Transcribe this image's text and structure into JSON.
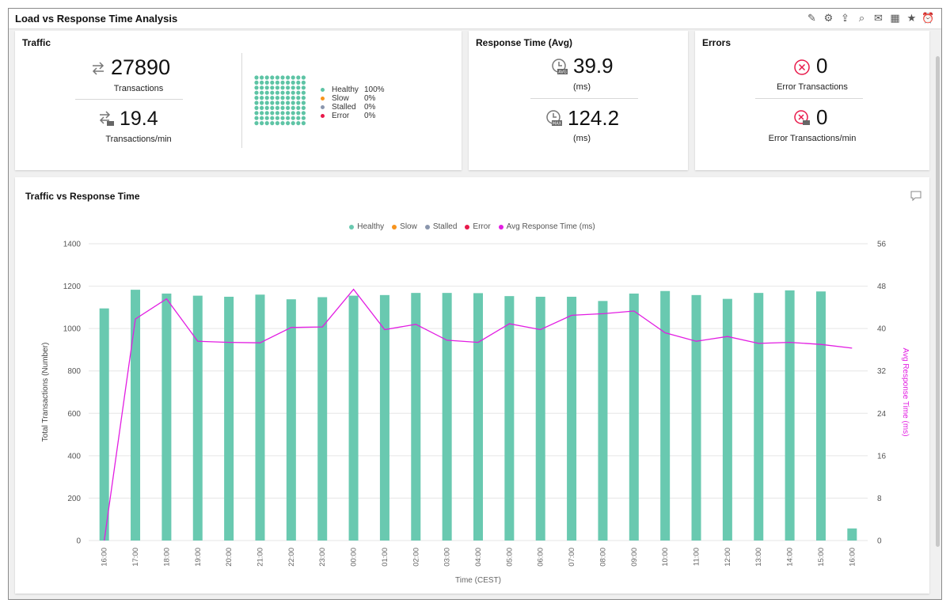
{
  "window": {
    "title": "Load vs Response Time Analysis"
  },
  "toolbar": {
    "buttons": [
      {
        "name": "edit-report-icon",
        "glyph": "✎"
      },
      {
        "name": "settings-icon",
        "glyph": "⚙"
      },
      {
        "name": "export-icon",
        "glyph": "⇪"
      },
      {
        "name": "search-icon",
        "glyph": "⌕"
      },
      {
        "name": "mail-icon",
        "glyph": "✉"
      },
      {
        "name": "excel-icon",
        "glyph": "▦"
      },
      {
        "name": "favorite-icon",
        "glyph": "★"
      },
      {
        "name": "alarm-icon",
        "glyph": "⏰"
      }
    ]
  },
  "traffic": {
    "title": "Traffic",
    "transactions_value": "27890",
    "transactions_label": "Transactions",
    "rate_value": "19.4",
    "rate_label": "Transactions/min",
    "breakdown": [
      {
        "name": "Healthy",
        "pct": "100%",
        "color": "#5ec4a5"
      },
      {
        "name": "Slow",
        "pct": "0%",
        "color": "#f7941d"
      },
      {
        "name": "Stalled",
        "pct": "0%",
        "color": "#8a96ad"
      },
      {
        "name": "Error",
        "pct": "0%",
        "color": "#e8194a"
      }
    ],
    "waffle_color": "#5ec4a5"
  },
  "response": {
    "title": "Response Time (Avg)",
    "avg_value": "39.9",
    "avg_unit": "(ms)",
    "max_value": "124.2",
    "max_unit": "(ms)",
    "avg_icon_text": "AVG",
    "max_icon_text": "MAX"
  },
  "errors": {
    "title": "Errors",
    "count_value": "0",
    "count_label": "Error Transactions",
    "rate_value": "0",
    "rate_label": "Error Transactions/min"
  },
  "chart_panel": {
    "title": "Traffic vs Response Time"
  },
  "chart_data": {
    "type": "bar",
    "title": "Traffic vs Response Time",
    "categories": [
      "16:00",
      "17:00",
      "18:00",
      "19:00",
      "20:00",
      "21:00",
      "22:00",
      "23:00",
      "00:00",
      "01:00",
      "02:00",
      "03:00",
      "04:00",
      "05:00",
      "06:00",
      "07:00",
      "08:00",
      "09:00",
      "10:00",
      "11:00",
      "12:00",
      "13:00",
      "14:00",
      "15:00",
      "16:00"
    ],
    "series": [
      {
        "name": "Healthy",
        "type": "bar",
        "axis": "left",
        "color": "#69c9b0",
        "values": [
          1095,
          1183,
          1165,
          1155,
          1150,
          1160,
          1138,
          1148,
          1155,
          1158,
          1168,
          1168,
          1167,
          1153,
          1150,
          1150,
          1130,
          1165,
          1177,
          1158,
          1140,
          1168,
          1180,
          1175,
          57
        ]
      },
      {
        "name": "Slow",
        "type": "bar",
        "axis": "left",
        "color": "#f7941d",
        "values": [
          0,
          0,
          0,
          0,
          0,
          0,
          0,
          0,
          0,
          0,
          0,
          0,
          0,
          0,
          0,
          0,
          0,
          0,
          0,
          0,
          0,
          0,
          0,
          0,
          0
        ]
      },
      {
        "name": "Stalled",
        "type": "bar",
        "axis": "left",
        "color": "#8a96ad",
        "values": [
          0,
          0,
          0,
          0,
          0,
          0,
          0,
          0,
          0,
          0,
          0,
          0,
          0,
          0,
          0,
          0,
          0,
          0,
          0,
          0,
          0,
          0,
          0,
          0,
          0
        ]
      },
      {
        "name": "Error",
        "type": "bar",
        "axis": "left",
        "color": "#e8194a",
        "values": [
          0,
          0,
          0,
          0,
          0,
          0,
          0,
          0,
          0,
          0,
          0,
          0,
          0,
          0,
          0,
          0,
          0,
          0,
          0,
          0,
          0,
          0,
          0,
          0,
          0
        ]
      },
      {
        "name": "Avg Response Time (ms)",
        "type": "line",
        "axis": "right",
        "color": "#e21de2",
        "values": [
          0,
          41.8,
          45.6,
          37.6,
          37.4,
          37.3,
          40.2,
          40.3,
          47.4,
          39.8,
          40.8,
          37.8,
          37.4,
          40.9,
          39.8,
          42.5,
          42.8,
          43.3,
          39.2,
          37.6,
          38.5,
          37.2,
          37.4,
          37.0,
          36.3
        ]
      }
    ],
    "xlabel": "Time (CEST)",
    "ylabel": "Total Transactions (Number)",
    "y2label": "Avg Response Time (ms)",
    "ylim": [
      0,
      1400
    ],
    "y2lim": [
      0,
      56
    ],
    "yticks": [
      0,
      200,
      400,
      600,
      800,
      1000,
      1200,
      1400
    ],
    "y2ticks": [
      0,
      8,
      16,
      24,
      32,
      40,
      48,
      56
    ],
    "grid": true,
    "legend_position": "top"
  }
}
